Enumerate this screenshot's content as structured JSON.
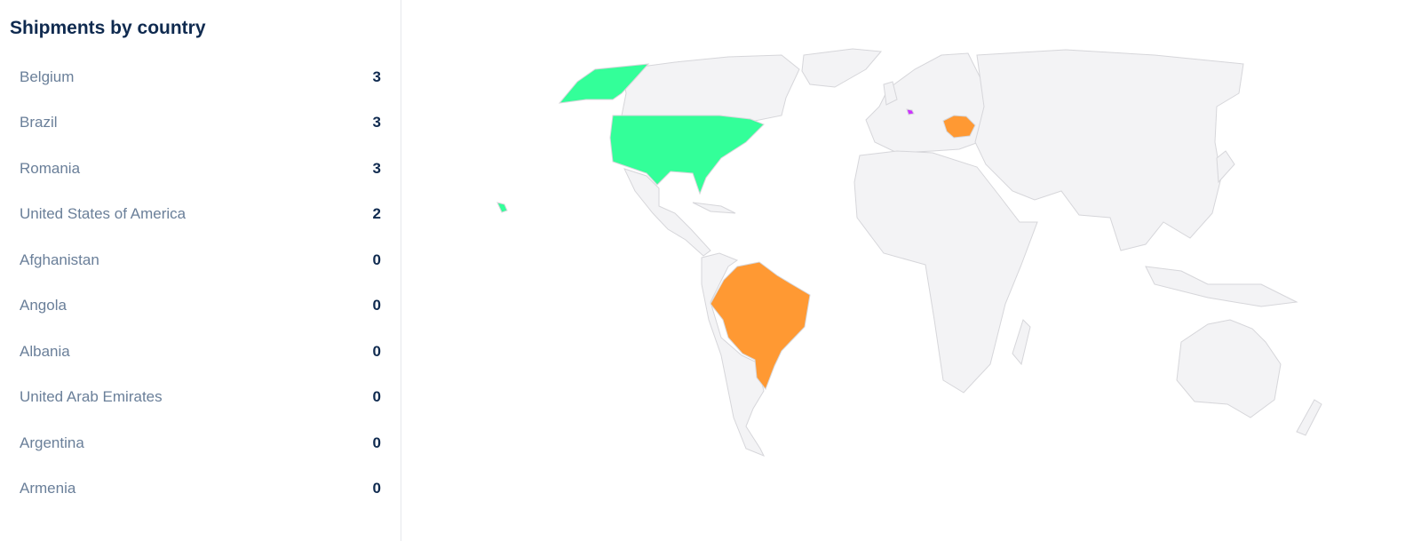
{
  "panel": {
    "title": "Shipments by country"
  },
  "countries": [
    {
      "name": "Belgium",
      "count": "3"
    },
    {
      "name": "Brazil",
      "count": "3"
    },
    {
      "name": "Romania",
      "count": "3"
    },
    {
      "name": "United States of America",
      "count": "2"
    },
    {
      "name": "Afghanistan",
      "count": "0"
    },
    {
      "name": "Angola",
      "count": "0"
    },
    {
      "name": "Albania",
      "count": "0"
    },
    {
      "name": "United Arab Emirates",
      "count": "0"
    },
    {
      "name": "Argentina",
      "count": "0"
    },
    {
      "name": "Armenia",
      "count": "0"
    }
  ],
  "map_colors": {
    "default_land": "#f3f3f5",
    "border": "#d6d6da",
    "Belgium": "#cc33ff",
    "Brazil": "#ff9933",
    "Romania": "#ff9933",
    "United States of America": "#33ff99"
  }
}
